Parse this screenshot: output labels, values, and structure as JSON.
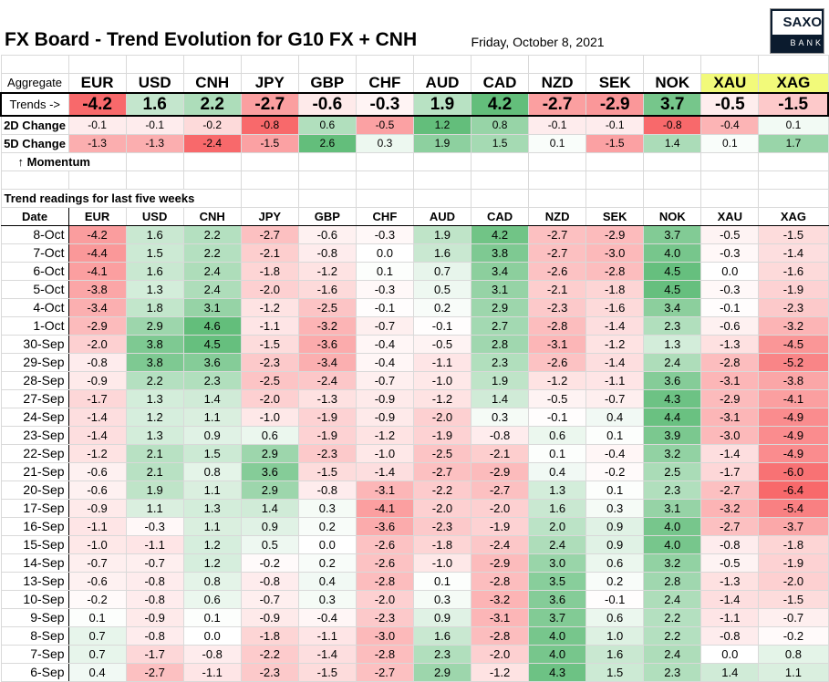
{
  "title": "FX Board - Trend Evolution for G10 FX + CNH",
  "date": "Friday, October 8, 2021",
  "logo": {
    "top": "SAXO",
    "bottom": "BANK"
  },
  "aggregate_label": "Aggregate",
  "currencies": [
    "EUR",
    "USD",
    "CNH",
    "JPY",
    "GBP",
    "CHF",
    "AUD",
    "CAD",
    "NZD",
    "SEK",
    "NOK",
    "XAU",
    "XAG"
  ],
  "trends": {
    "label": "Trends ->",
    "values": [
      "-4.2",
      "1.6",
      "2.2",
      "-2.7",
      "-0.6",
      "-0.3",
      "1.9",
      "4.2",
      "-2.7",
      "-2.9",
      "3.7",
      "-0.5",
      "-1.5"
    ]
  },
  "change_2d": {
    "label": "2D Change",
    "values": [
      "-0.1",
      "-0.1",
      "-0.2",
      "-0.8",
      "0.6",
      "-0.5",
      "1.2",
      "0.8",
      "-0.1",
      "-0.1",
      "-0.8",
      "-0.4",
      "0.1"
    ]
  },
  "change_5d": {
    "label": "5D Change",
    "values": [
      "-1.3",
      "-1.3",
      "-2.4",
      "-1.5",
      "2.6",
      "0.3",
      "1.9",
      "1.5",
      "0.1",
      "-1.5",
      "1.4",
      "0.1",
      "1.7"
    ]
  },
  "momentum_label": "↑ Momentum",
  "section_title": "Trend readings for last five weeks",
  "date_header": "Date",
  "colors": {
    "red": "#F8696B",
    "green": "#63BE7B",
    "white": "#FFFFFF",
    "metal_header": "#F2FA7A"
  },
  "rows": [
    {
      "date": "8-Oct",
      "values": [
        "-4.2",
        "1.6",
        "2.2",
        "-2.7",
        "-0.6",
        "-0.3",
        "1.9",
        "4.2",
        "-2.7",
        "-2.9",
        "3.7",
        "-0.5",
        "-1.5"
      ]
    },
    {
      "date": "7-Oct",
      "values": [
        "-4.4",
        "1.5",
        "2.2",
        "-2.1",
        "-0.8",
        "0.0",
        "1.6",
        "3.8",
        "-2.7",
        "-3.0",
        "4.0",
        "-0.3",
        "-1.4"
      ]
    },
    {
      "date": "6-Oct",
      "values": [
        "-4.1",
        "1.6",
        "2.4",
        "-1.8",
        "-1.2",
        "0.1",
        "0.7",
        "3.4",
        "-2.6",
        "-2.8",
        "4.5",
        "0.0",
        "-1.6"
      ]
    },
    {
      "date": "5-Oct",
      "values": [
        "-3.8",
        "1.3",
        "2.4",
        "-2.0",
        "-1.6",
        "-0.3",
        "0.5",
        "3.1",
        "-2.1",
        "-1.8",
        "4.5",
        "-0.3",
        "-1.9"
      ]
    },
    {
      "date": "4-Oct",
      "values": [
        "-3.4",
        "1.8",
        "3.1",
        "-1.2",
        "-2.5",
        "-0.1",
        "0.2",
        "2.9",
        "-2.3",
        "-1.6",
        "3.4",
        "-0.1",
        "-2.3"
      ]
    },
    {
      "date": "1-Oct",
      "values": [
        "-2.9",
        "2.9",
        "4.6",
        "-1.1",
        "-3.2",
        "-0.7",
        "-0.1",
        "2.7",
        "-2.8",
        "-1.4",
        "2.3",
        "-0.6",
        "-3.2"
      ]
    },
    {
      "date": "30-Sep",
      "values": [
        "-2.0",
        "3.8",
        "4.5",
        "-1.5",
        "-3.6",
        "-0.4",
        "-0.5",
        "2.8",
        "-3.1",
        "-1.2",
        "1.3",
        "-1.3",
        "-4.5"
      ]
    },
    {
      "date": "29-Sep",
      "values": [
        "-0.8",
        "3.8",
        "3.6",
        "-2.3",
        "-3.4",
        "-0.4",
        "-1.1",
        "2.3",
        "-2.6",
        "-1.4",
        "2.4",
        "-2.8",
        "-5.2"
      ]
    },
    {
      "date": "28-Sep",
      "values": [
        "-0.9",
        "2.2",
        "2.3",
        "-2.5",
        "-2.4",
        "-0.7",
        "-1.0",
        "1.9",
        "-1.2",
        "-1.1",
        "3.6",
        "-3.1",
        "-3.8"
      ]
    },
    {
      "date": "27-Sep",
      "values": [
        "-1.7",
        "1.3",
        "1.4",
        "-2.0",
        "-1.3",
        "-0.9",
        "-1.2",
        "1.4",
        "-0.5",
        "-0.7",
        "4.3",
        "-2.9",
        "-4.1"
      ]
    },
    {
      "date": "24-Sep",
      "values": [
        "-1.4",
        "1.2",
        "1.1",
        "-1.0",
        "-1.9",
        "-0.9",
        "-2.0",
        "0.3",
        "-0.1",
        "0.4",
        "4.4",
        "-3.1",
        "-4.9"
      ]
    },
    {
      "date": "23-Sep",
      "values": [
        "-1.4",
        "1.3",
        "0.9",
        "0.6",
        "-1.9",
        "-1.2",
        "-1.9",
        "-0.8",
        "0.6",
        "0.1",
        "3.9",
        "-3.0",
        "-4.9"
      ]
    },
    {
      "date": "22-Sep",
      "values": [
        "-1.2",
        "2.1",
        "1.5",
        "2.9",
        "-2.3",
        "-1.0",
        "-2.5",
        "-2.1",
        "0.1",
        "-0.4",
        "3.2",
        "-1.4",
        "-4.9"
      ]
    },
    {
      "date": "21-Sep",
      "values": [
        "-0.6",
        "2.1",
        "0.8",
        "3.6",
        "-1.5",
        "-1.4",
        "-2.7",
        "-2.9",
        "0.4",
        "-0.2",
        "2.5",
        "-1.7",
        "-6.0"
      ]
    },
    {
      "date": "20-Sep",
      "values": [
        "-0.6",
        "1.9",
        "1.1",
        "2.9",
        "-0.8",
        "-3.1",
        "-2.2",
        "-2.7",
        "1.3",
        "0.1",
        "2.3",
        "-2.7",
        "-6.4"
      ]
    },
    {
      "date": "17-Sep",
      "values": [
        "-0.9",
        "1.1",
        "1.3",
        "1.4",
        "0.3",
        "-4.1",
        "-2.0",
        "-2.0",
        "1.6",
        "0.3",
        "3.1",
        "-3.2",
        "-5.4"
      ]
    },
    {
      "date": "16-Sep",
      "values": [
        "-1.1",
        "-0.3",
        "1.1",
        "0.9",
        "0.2",
        "-3.6",
        "-2.3",
        "-1.9",
        "2.0",
        "0.9",
        "4.0",
        "-2.7",
        "-3.7"
      ]
    },
    {
      "date": "15-Sep",
      "values": [
        "-1.0",
        "-1.1",
        "1.2",
        "0.5",
        "0.0",
        "-2.6",
        "-1.8",
        "-2.4",
        "2.4",
        "0.9",
        "4.0",
        "-0.8",
        "-1.8"
      ]
    },
    {
      "date": "14-Sep",
      "values": [
        "-0.7",
        "-0.7",
        "1.2",
        "-0.2",
        "0.2",
        "-2.6",
        "-1.0",
        "-2.9",
        "3.0",
        "0.6",
        "3.2",
        "-0.5",
        "-1.9"
      ]
    },
    {
      "date": "13-Sep",
      "values": [
        "-0.6",
        "-0.8",
        "0.8",
        "-0.8",
        "0.4",
        "-2.8",
        "0.1",
        "-2.8",
        "3.5",
        "0.2",
        "2.8",
        "-1.3",
        "-2.0"
      ]
    },
    {
      "date": "10-Sep",
      "values": [
        "-0.2",
        "-0.8",
        "0.6",
        "-0.7",
        "0.3",
        "-2.0",
        "0.3",
        "-3.2",
        "3.6",
        "-0.1",
        "2.4",
        "-1.4",
        "-1.5"
      ]
    },
    {
      "date": "9-Sep",
      "values": [
        "0.1",
        "-0.9",
        "0.1",
        "-0.9",
        "-0.4",
        "-2.3",
        "0.9",
        "-3.1",
        "3.7",
        "0.6",
        "2.2",
        "-1.1",
        "-0.7"
      ]
    },
    {
      "date": "8-Sep",
      "values": [
        "0.7",
        "-0.8",
        "0.0",
        "-1.8",
        "-1.1",
        "-3.0",
        "1.6",
        "-2.8",
        "4.0",
        "1.0",
        "2.2",
        "-0.8",
        "-0.2"
      ]
    },
    {
      "date": "7-Sep",
      "values": [
        "0.7",
        "-1.7",
        "-0.8",
        "-2.2",
        "-1.4",
        "-2.8",
        "2.3",
        "-2.0",
        "4.0",
        "1.6",
        "2.4",
        "0.0",
        "0.8"
      ]
    },
    {
      "date": "6-Sep",
      "values": [
        "0.4",
        "-2.7",
        "-1.1",
        "-2.3",
        "-1.5",
        "-2.7",
        "2.9",
        "-1.2",
        "4.3",
        "1.5",
        "2.3",
        "1.4",
        "1.1"
      ]
    }
  ]
}
